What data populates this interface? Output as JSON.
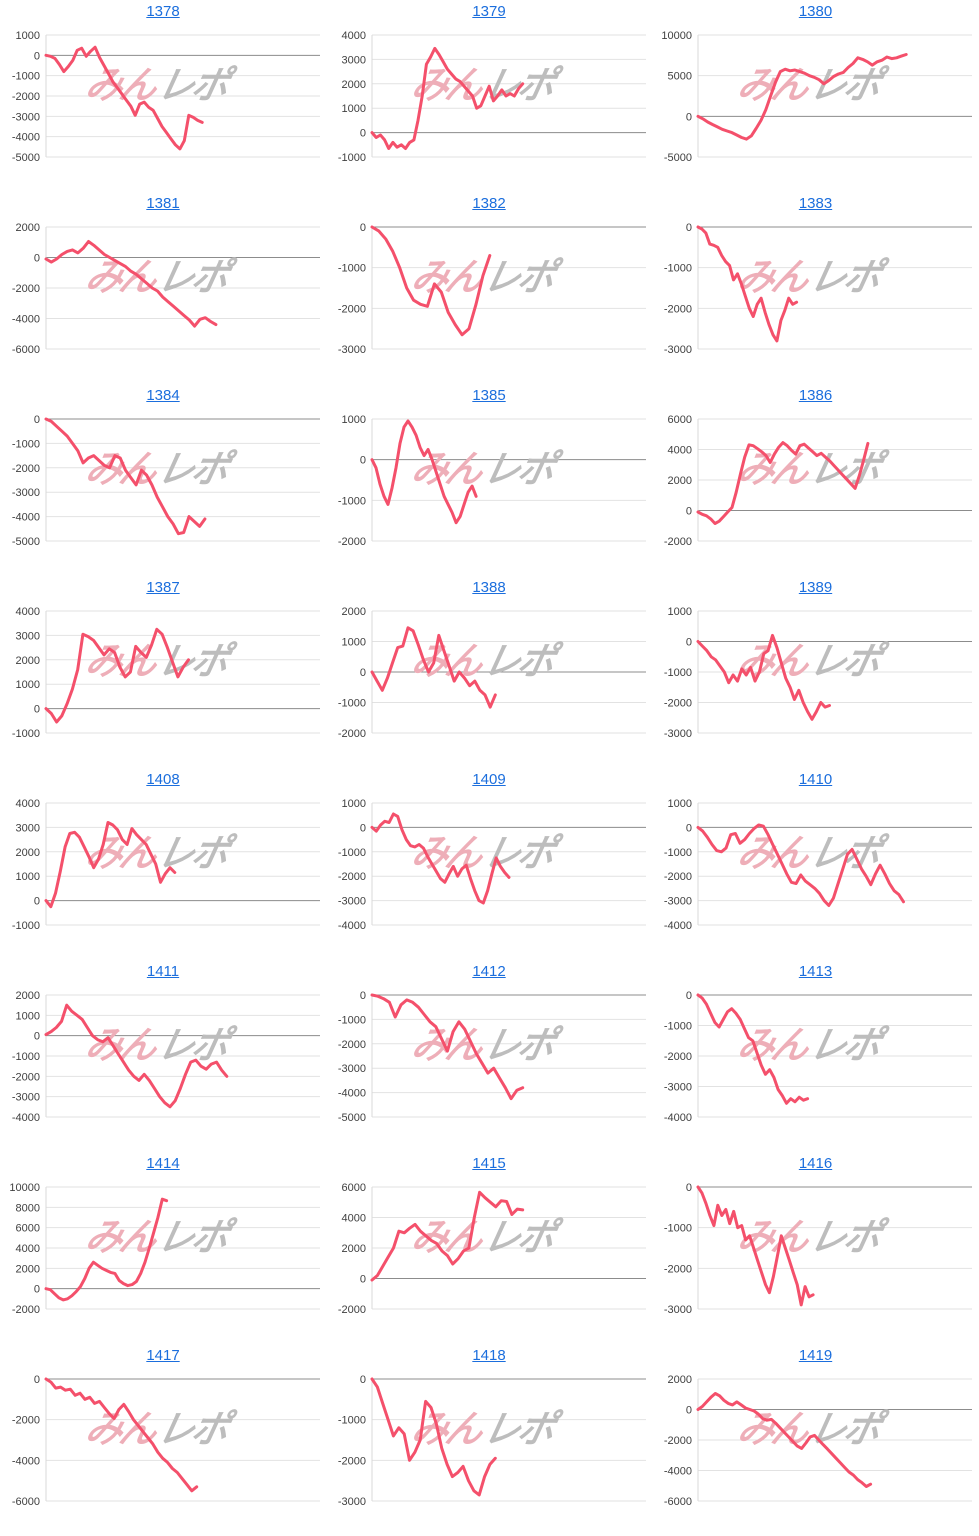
{
  "watermark": {
    "pink_text": "みん",
    "gray_text": "レポ"
  },
  "colors": {
    "line": "#f4506b",
    "grid": "#e2e2e2",
    "zero_line": "#8c8c8c",
    "axis_line": "#d9d9d9",
    "tick_label": "#404040",
    "link": "#1b6edd",
    "watermark_pink": "#eeaeb8",
    "watermark_gray": "#bdbdbd"
  },
  "chart_data": [
    {
      "type": "line",
      "title": "1378",
      "ylim": [
        -5000,
        1000
      ],
      "yticks": [
        1000,
        0,
        -1000,
        -2000,
        -3000,
        -4000,
        -5000
      ],
      "x_fraction": 0.57,
      "values": [
        0,
        -50,
        -150,
        -450,
        -800,
        -550,
        -250,
        250,
        350,
        -50,
        200,
        400,
        -100,
        -500,
        -900,
        -1300,
        -1600,
        -1900,
        -2200,
        -2500,
        -2950,
        -2400,
        -2300,
        -2550,
        -2700,
        -3100,
        -3500,
        -3800,
        -4100,
        -4400,
        -4600,
        -4200,
        -2950,
        -3050,
        -3200,
        -3300
      ]
    },
    {
      "type": "line",
      "title": "1379",
      "ylim": [
        -1000,
        4000
      ],
      "yticks": [
        4000,
        3000,
        2000,
        1000,
        0,
        -1000
      ],
      "x_fraction": 0.55,
      "values": [
        0,
        -200,
        -100,
        -300,
        -650,
        -400,
        -600,
        -500,
        -650,
        -400,
        -300,
        500,
        1500,
        2800,
        3100,
        3450,
        3200,
        2900,
        2600,
        2400,
        2200,
        2100,
        1900,
        1700,
        1500,
        1000,
        1100,
        1500,
        1900,
        1300,
        1500,
        1750,
        1500,
        1600,
        1500,
        1800,
        2000
      ]
    },
    {
      "type": "line",
      "title": "1380",
      "ylim": [
        -5000,
        10000
      ],
      "yticks": [
        10000,
        5000,
        0,
        -5000
      ],
      "x_fraction": 0.76,
      "values": [
        0,
        -300,
        -700,
        -1000,
        -1300,
        -1600,
        -1800,
        -2000,
        -2300,
        -2600,
        -2800,
        -2400,
        -1500,
        -500,
        800,
        2500,
        4200,
        5500,
        5800,
        5600,
        5700,
        5500,
        5300,
        5000,
        4800,
        4500,
        4000,
        4400,
        4900,
        5200,
        5400,
        6000,
        6500,
        7200,
        7000,
        6700,
        6300,
        6700,
        6900,
        7300,
        7100,
        7200,
        7400,
        7600
      ]
    },
    {
      "type": "line",
      "title": "1381",
      "ylim": [
        -6000,
        2000
      ],
      "yticks": [
        2000,
        0,
        -2000,
        -4000,
        -6000
      ],
      "x_fraction": 0.62,
      "values": [
        -100,
        -300,
        -100,
        200,
        400,
        500,
        300,
        600,
        1050,
        800,
        500,
        200,
        0,
        -200,
        -400,
        -600,
        -900,
        -1100,
        -1400,
        -1700,
        -2000,
        -2200,
        -2600,
        -2900,
        -3200,
        -3500,
        -3800,
        -4100,
        -4500,
        -4050,
        -3950,
        -4200,
        -4400
      ]
    },
    {
      "type": "line",
      "title": "1382",
      "ylim": [
        -3000,
        0
      ],
      "yticks": [
        0,
        -1000,
        -2000,
        -3000
      ],
      "x_fraction": 0.43,
      "values": [
        0,
        -100,
        -300,
        -600,
        -1000,
        -1500,
        -1800,
        -1900,
        -1950,
        -1400,
        -1600,
        -2100,
        -2400,
        -2650,
        -2500,
        -1900,
        -1200,
        -700
      ]
    },
    {
      "type": "line",
      "title": "1383",
      "ylim": [
        -3000,
        0
      ],
      "yticks": [
        0,
        -1000,
        -2000,
        -3000
      ],
      "x_fraction": 0.36,
      "values": [
        0,
        -50,
        -150,
        -420,
        -450,
        -500,
        -700,
        -850,
        -950,
        -1300,
        -1150,
        -1400,
        -1700,
        -2000,
        -2200,
        -1900,
        -1750,
        -2100,
        -2400,
        -2650,
        -2800,
        -2300,
        -2050,
        -1750,
        -1900,
        -1850
      ]
    },
    {
      "type": "line",
      "title": "1384",
      "ylim": [
        -5000,
        0
      ],
      "yticks": [
        0,
        -1000,
        -2000,
        -3000,
        -4000,
        -5000
      ],
      "x_fraction": 0.58,
      "values": [
        0,
        -100,
        -300,
        -500,
        -700,
        -1000,
        -1300,
        -1800,
        -1600,
        -1500,
        -1700,
        -1900,
        -2000,
        -1500,
        -1600,
        -2100,
        -2400,
        -2700,
        -2100,
        -2300,
        -2700,
        -3200,
        -3600,
        -4000,
        -4300,
        -4700,
        -4650,
        -4000,
        -4200,
        -4400,
        -4100
      ]
    },
    {
      "type": "line",
      "title": "1385",
      "ylim": [
        -2000,
        1000
      ],
      "yticks": [
        1000,
        0,
        -1000,
        -2000
      ],
      "x_fraction": 0.38,
      "values": [
        0,
        -200,
        -600,
        -900,
        -1100,
        -700,
        -200,
        400,
        800,
        950,
        800,
        600,
        300,
        100,
        250,
        0,
        -300,
        -600,
        -900,
        -1100,
        -1300,
        -1550,
        -1400,
        -1100,
        -800,
        -650,
        -900
      ]
    },
    {
      "type": "line",
      "title": "1386",
      "ylim": [
        -2000,
        6000
      ],
      "yticks": [
        6000,
        4000,
        2000,
        0,
        -2000
      ],
      "x_fraction": 0.62,
      "values": [
        -100,
        -250,
        -350,
        -550,
        -850,
        -700,
        -400,
        -100,
        200,
        1200,
        2400,
        3500,
        4300,
        4250,
        4050,
        3850,
        3600,
        3150,
        3700,
        4150,
        4450,
        4250,
        3950,
        3700,
        4250,
        4350,
        4100,
        3850,
        3600,
        3750,
        3500,
        3250,
        2950,
        2650,
        2350,
        2050,
        1750,
        1450,
        2300,
        3300,
        4400
      ]
    },
    {
      "type": "line",
      "title": "1387",
      "ylim": [
        -1000,
        4000
      ],
      "yticks": [
        4000,
        3000,
        2000,
        1000,
        0,
        -1000
      ],
      "x_fraction": 0.52,
      "values": [
        0,
        -200,
        -550,
        -300,
        200,
        800,
        1600,
        3050,
        2950,
        2800,
        2500,
        2200,
        2450,
        2300,
        1700,
        1300,
        1500,
        2550,
        2300,
        2100,
        2600,
        3250,
        3050,
        2500,
        1900,
        1300,
        1700,
        2000
      ]
    },
    {
      "type": "line",
      "title": "1388",
      "ylim": [
        -2000,
        2000
      ],
      "yticks": [
        2000,
        1000,
        0,
        -1000,
        -2000
      ],
      "x_fraction": 0.45,
      "values": [
        0,
        -300,
        -600,
        -200,
        300,
        800,
        850,
        1450,
        1350,
        900,
        400,
        0,
        300,
        1200,
        700,
        200,
        -300,
        0,
        -200,
        -450,
        -300,
        -600,
        -750,
        -1150,
        -750
      ]
    },
    {
      "type": "line",
      "title": "1389",
      "ylim": [
        -3000,
        1000
      ],
      "yticks": [
        1000,
        0,
        -1000,
        -2000,
        -3000
      ],
      "x_fraction": 0.48,
      "values": [
        0,
        -150,
        -300,
        -500,
        -600,
        -800,
        -1000,
        -1350,
        -1100,
        -1300,
        -900,
        -1100,
        -850,
        -1300,
        -1000,
        -400,
        -300,
        200,
        -200,
        -700,
        -1200,
        -1500,
        -1900,
        -1600,
        -2000,
        -2300,
        -2550,
        -2300,
        -2000,
        -2150,
        -2100
      ]
    },
    {
      "type": "line",
      "title": "1408",
      "ylim": [
        -1000,
        4000
      ],
      "yticks": [
        4000,
        3000,
        2000,
        1000,
        0,
        -1000
      ],
      "x_fraction": 0.47,
      "values": [
        0,
        -250,
        300,
        1200,
        2200,
        2750,
        2800,
        2600,
        2200,
        1800,
        1350,
        1700,
        2300,
        3200,
        3100,
        2900,
        2500,
        2300,
        2950,
        2700,
        2500,
        2300,
        1900,
        1500,
        750,
        1100,
        1350,
        1150
      ]
    },
    {
      "type": "line",
      "title": "1409",
      "ylim": [
        -4000,
        1000
      ],
      "yticks": [
        1000,
        0,
        -1000,
        -2000,
        -3000,
        -4000
      ],
      "x_fraction": 0.5,
      "values": [
        0,
        -150,
        100,
        250,
        200,
        550,
        450,
        -100,
        -500,
        -750,
        -800,
        -700,
        -850,
        -1200,
        -1500,
        -1800,
        -2100,
        -2250,
        -1900,
        -1600,
        -2000,
        -1700,
        -1550,
        -2100,
        -2600,
        -3000,
        -3100,
        -2600,
        -1900,
        -1250,
        -1600,
        -1850,
        -2050
      ]
    },
    {
      "type": "line",
      "title": "1410",
      "ylim": [
        -4000,
        1000
      ],
      "yticks": [
        1000,
        0,
        -1000,
        -2000,
        -3000,
        -4000
      ],
      "x_fraction": 0.75,
      "values": [
        0,
        -150,
        -400,
        -700,
        -950,
        -1000,
        -850,
        -300,
        -250,
        -650,
        -500,
        -250,
        -50,
        100,
        50,
        -300,
        -700,
        -1100,
        -1500,
        -1900,
        -2250,
        -2300,
        -1950,
        -2200,
        -2350,
        -2500,
        -2700,
        -3000,
        -3200,
        -2900,
        -2300,
        -1700,
        -1100,
        -900,
        -1300,
        -1700,
        -2000,
        -2350,
        -1900,
        -1550,
        -1900,
        -2300,
        -2600,
        -2750,
        -3050
      ]
    },
    {
      "type": "line",
      "title": "1411",
      "ylim": [
        -4000,
        2000
      ],
      "yticks": [
        2000,
        1000,
        0,
        -1000,
        -2000,
        -3000,
        -4000
      ],
      "x_fraction": 0.66,
      "values": [
        50,
        200,
        400,
        700,
        1500,
        1200,
        1000,
        800,
        400,
        0,
        -200,
        -300,
        -100,
        -500,
        -900,
        -1300,
        -1700,
        -2000,
        -2200,
        -1900,
        -2200,
        -2600,
        -3000,
        -3300,
        -3500,
        -3200,
        -2600,
        -1900,
        -1300,
        -1200,
        -1500,
        -1650,
        -1400,
        -1300,
        -1700,
        -2000
      ]
    },
    {
      "type": "line",
      "title": "1412",
      "ylim": [
        -5000,
        0
      ],
      "yticks": [
        0,
        -1000,
        -2000,
        -3000,
        -4000,
        -5000
      ],
      "x_fraction": 0.55,
      "values": [
        0,
        -50,
        -150,
        -300,
        -900,
        -400,
        -200,
        -300,
        -500,
        -800,
        -1100,
        -1300,
        -1800,
        -2300,
        -1500,
        -1100,
        -1400,
        -1900,
        -2400,
        -2800,
        -3200,
        -3000,
        -3400,
        -3800,
        -4250,
        -3900,
        -3800
      ]
    },
    {
      "type": "line",
      "title": "1413",
      "ylim": [
        -4000,
        0
      ],
      "yticks": [
        0,
        -1000,
        -2000,
        -3000,
        -4000
      ],
      "x_fraction": 0.4,
      "values": [
        0,
        -100,
        -300,
        -600,
        -900,
        -1050,
        -800,
        -550,
        -450,
        -600,
        -800,
        -1100,
        -1400,
        -1500,
        -1900,
        -2300,
        -2600,
        -2450,
        -2700,
        -3100,
        -3300,
        -3550,
        -3400,
        -3500,
        -3350,
        -3450,
        -3400
      ]
    },
    {
      "type": "line",
      "title": "1414",
      "ylim": [
        -2000,
        10000
      ],
      "yticks": [
        10000,
        8000,
        6000,
        4000,
        2000,
        0,
        -2000
      ],
      "x_fraction": 0.44,
      "values": [
        0,
        -100,
        -500,
        -900,
        -1100,
        -1000,
        -700,
        -300,
        200,
        1000,
        2000,
        2600,
        2300,
        2000,
        1800,
        1600,
        1500,
        800,
        500,
        300,
        400,
        700,
        1500,
        2600,
        4000,
        5500,
        7000,
        8800,
        8650
      ]
    },
    {
      "type": "line",
      "title": "1415",
      "ylim": [
        -2000,
        6000
      ],
      "yticks": [
        6000,
        4000,
        2000,
        0,
        -2000
      ],
      "x_fraction": 0.55,
      "values": [
        -100,
        200,
        800,
        1400,
        2000,
        3100,
        3000,
        3300,
        3550,
        3100,
        2800,
        2500,
        2300,
        1800,
        1500,
        950,
        1300,
        1800,
        2000,
        4000,
        5650,
        5300,
        5000,
        4700,
        5100,
        5050,
        4200,
        4550,
        4500
      ]
    },
    {
      "type": "line",
      "title": "1416",
      "ylim": [
        -3000,
        0
      ],
      "yticks": [
        0,
        -1000,
        -2000,
        -3000
      ],
      "x_fraction": 0.42,
      "values": [
        0,
        -150,
        -400,
        -700,
        -950,
        -450,
        -700,
        -550,
        -900,
        -600,
        -1000,
        -950,
        -1300,
        -1200,
        -1500,
        -1800,
        -2100,
        -2400,
        -2600,
        -2200,
        -1700,
        -1200,
        -1500,
        -1800,
        -2100,
        -2400,
        -2900,
        -2450,
        -2700,
        -2650
      ]
    },
    {
      "type": "line",
      "title": "1417",
      "ylim": [
        -6000,
        0
      ],
      "yticks": [
        0,
        -2000,
        -4000,
        -6000
      ],
      "x_fraction": 0.55,
      "values": [
        0,
        -150,
        -450,
        -400,
        -550,
        -500,
        -800,
        -700,
        -1000,
        -900,
        -1200,
        -1100,
        -1400,
        -1700,
        -1950,
        -1500,
        -1250,
        -1600,
        -2000,
        -2300,
        -2600,
        -2900,
        -3200,
        -3600,
        -3900,
        -4100,
        -4400,
        -4600,
        -4900,
        -5200,
        -5500,
        -5300
      ]
    },
    {
      "type": "line",
      "title": "1418",
      "ylim": [
        -3000,
        0
      ],
      "yticks": [
        0,
        -1000,
        -2000,
        -3000
      ],
      "x_fraction": 0.45,
      "values": [
        0,
        -200,
        -600,
        -1000,
        -1400,
        -1200,
        -1350,
        -2000,
        -1800,
        -1500,
        -550,
        -700,
        -1100,
        -1700,
        -2100,
        -2400,
        -2300,
        -2150,
        -2500,
        -2750,
        -2850,
        -2400,
        -2100,
        -1950
      ]
    },
    {
      "type": "line",
      "title": "1419",
      "ylim": [
        -6000,
        2000
      ],
      "yticks": [
        2000,
        0,
        -2000,
        -4000,
        -6000
      ],
      "x_fraction": 0.63,
      "values": [
        0,
        200,
        500,
        800,
        1050,
        900,
        600,
        400,
        300,
        500,
        300,
        100,
        0,
        -100,
        -300,
        -600,
        -700,
        -650,
        -900,
        -1200,
        -1500,
        -1800,
        -2100,
        -2400,
        -2550,
        -2200,
        -1800,
        -1700,
        -2000,
        -2300,
        -2600,
        -2900,
        -3200,
        -3500,
        -3800,
        -4100,
        -4300,
        -4600,
        -4800,
        -5050,
        -4900
      ]
    }
  ]
}
